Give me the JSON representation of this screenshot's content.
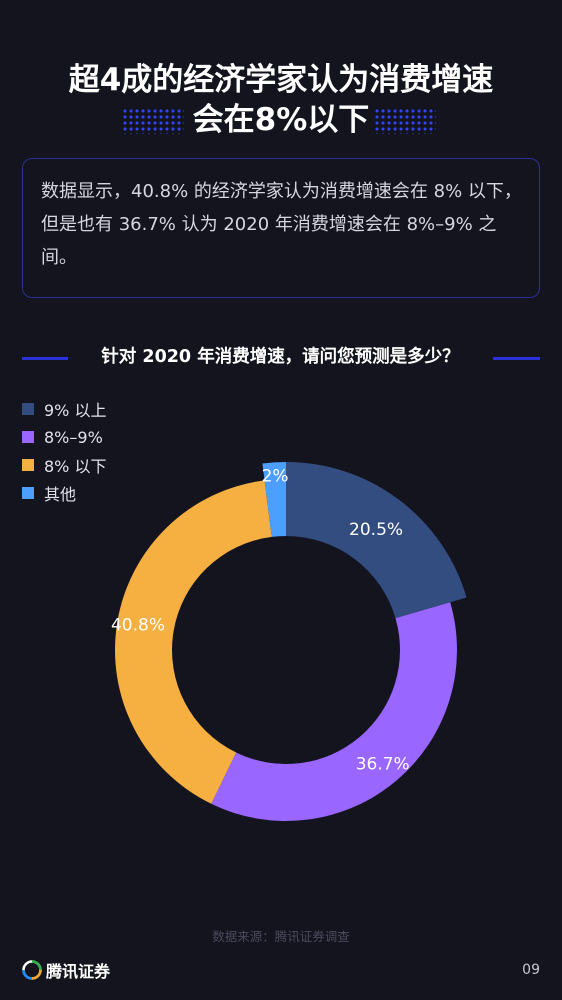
{
  "header": {
    "title_line1": "超4成的经济学家认为消费增速",
    "title_line2": "会在8%以下"
  },
  "summary": {
    "text": "数据显示，40.8% 的经济学家认为消费增速会在 8% 以下，但是也有 36.7% 认为 2020 年消费增速会在 8%–9% 之间。"
  },
  "section": {
    "title": "针对 2020 年消费增速，请问您预测是多少？",
    "accent_color": "#2a31d6"
  },
  "chart_data": {
    "type": "pie",
    "variant": "donut",
    "title": "针对 2020 年消费增速，请问您预测是多少？",
    "categories": [
      "9% 以上",
      "8%–9%",
      "8% 以下",
      "其他"
    ],
    "values": [
      20.5,
      36.7,
      40.8,
      2
    ],
    "labels": [
      "20.5%",
      "36.7%",
      "40.8%",
      "2%"
    ],
    "colors": [
      "#334d80",
      "#9966ff",
      "#f5b041",
      "#4d9fff"
    ],
    "legend": "top-left"
  },
  "footer": {
    "source": "数据来源：腾讯证券调查",
    "brand": "腾讯证券",
    "page_number": "09"
  }
}
